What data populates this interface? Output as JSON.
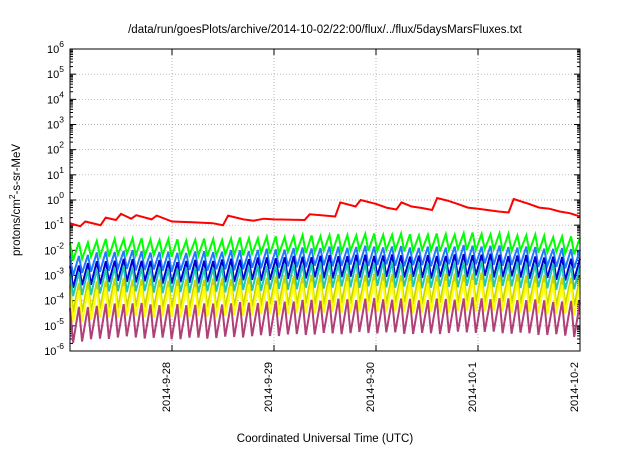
{
  "chart_data": {
    "type": "line",
    "title": "/data/run/goesPlots/archive/2014-10-02/22:00/flux/../flux/5daysMarsFluxes.txt",
    "xlabel": "Coordinated Universal Time (UTC)",
    "ylabel_parts": [
      "protons/cm",
      "2",
      "-s-sr-MeV"
    ],
    "yscale": "log",
    "ylim_exp": [
      -6,
      6
    ],
    "y_ticks": [
      {
        "base": "10",
        "exp": "6"
      },
      {
        "base": "10",
        "exp": "5"
      },
      {
        "base": "10",
        "exp": "4"
      },
      {
        "base": "10",
        "exp": "3"
      },
      {
        "base": "10",
        "exp": "2"
      },
      {
        "base": "10",
        "exp": "1"
      },
      {
        "base": "10",
        "exp": "0"
      },
      {
        "base": "10",
        "exp": "-1"
      },
      {
        "base": "10",
        "exp": "-2"
      },
      {
        "base": "10",
        "exp": "-3"
      },
      {
        "base": "10",
        "exp": "-4"
      },
      {
        "base": "10",
        "exp": "-5"
      },
      {
        "base": "10",
        "exp": "-6"
      }
    ],
    "xlim_days": [
      0,
      5
    ],
    "x_ticks": [
      {
        "label": "2014-9-28",
        "day": 1
      },
      {
        "label": "2014-9-29",
        "day": 2
      },
      {
        "label": "2014-9-30",
        "day": 3
      },
      {
        "label": "2014-10-1",
        "day": 4
      },
      {
        "label": "2014-10-2",
        "day": 5
      }
    ],
    "grid": true,
    "series": [
      {
        "color": "#ff0000",
        "points": [
          [
            0.0,
            0.12
          ],
          [
            0.1,
            0.09
          ],
          [
            0.15,
            0.14
          ],
          [
            0.3,
            0.1
          ],
          [
            0.35,
            0.2
          ],
          [
            0.45,
            0.16
          ],
          [
            0.5,
            0.28
          ],
          [
            0.6,
            0.18
          ],
          [
            0.65,
            0.25
          ],
          [
            0.8,
            0.17
          ],
          [
            0.85,
            0.24
          ],
          [
            1.0,
            0.14
          ],
          [
            1.2,
            0.13
          ],
          [
            1.4,
            0.12
          ],
          [
            1.5,
            0.1
          ],
          [
            1.55,
            0.24
          ],
          [
            1.7,
            0.17
          ],
          [
            1.8,
            0.15
          ],
          [
            1.9,
            0.18
          ],
          [
            2.0,
            0.17
          ],
          [
            2.3,
            0.16
          ],
          [
            2.35,
            0.27
          ],
          [
            2.6,
            0.22
          ],
          [
            2.65,
            0.8
          ],
          [
            2.8,
            0.55
          ],
          [
            2.85,
            1.0
          ],
          [
            3.0,
            0.7
          ],
          [
            3.1,
            0.5
          ],
          [
            3.2,
            0.42
          ],
          [
            3.25,
            0.8
          ],
          [
            3.35,
            0.55
          ],
          [
            3.45,
            0.48
          ],
          [
            3.55,
            0.4
          ],
          [
            3.6,
            1.2
          ],
          [
            3.7,
            0.95
          ],
          [
            3.8,
            0.7
          ],
          [
            3.9,
            0.5
          ],
          [
            4.0,
            0.45
          ],
          [
            4.2,
            0.35
          ],
          [
            4.3,
            0.32
          ],
          [
            4.35,
            1.1
          ],
          [
            4.5,
            0.7
          ],
          [
            4.6,
            0.5
          ],
          [
            4.7,
            0.45
          ],
          [
            4.8,
            0.35
          ],
          [
            4.9,
            0.3
          ],
          [
            5.0,
            0.22
          ]
        ]
      },
      {
        "color": "#00ff00",
        "base": [
          0.009,
          0.015,
          0.013,
          0.014,
          0.017,
          0.02,
          0.022,
          0.021,
          0.024,
          0.02,
          0.016
        ],
        "hi": 2.0,
        "lo": 0.45
      },
      {
        "color": "#1e7bff",
        "base": [
          0.0025,
          0.0045,
          0.0037,
          0.0042,
          0.005,
          0.006,
          0.0065,
          0.006,
          0.007,
          0.006,
          0.0048
        ],
        "hi": 2.2,
        "lo": 0.4
      },
      {
        "color": "#0000d0",
        "base": [
          0.0009,
          0.0017,
          0.0014,
          0.0016,
          0.002,
          0.0023,
          0.0025,
          0.0023,
          0.0027,
          0.0023,
          0.0018
        ],
        "hi": 2.6,
        "lo": 0.35
      },
      {
        "color": "#20c8b0",
        "base": [
          0.00045,
          0.0008,
          0.00068,
          0.00076,
          0.0009,
          0.0011,
          0.0012,
          0.0011,
          0.0013,
          0.0011,
          0.00085
        ],
        "hi": 2.8,
        "lo": 0.3
      },
      {
        "color": "#c8d400",
        "base": [
          0.00012,
          0.00022,
          0.00019,
          0.00021,
          0.00026,
          0.0003,
          0.00033,
          0.0003,
          0.00035,
          0.0003,
          0.00023
        ],
        "hi": 3.5,
        "lo": 0.25
      },
      {
        "color": "#ffff00",
        "base": [
          6e-05,
          0.00011,
          0.0001,
          0.00011,
          0.00013,
          0.00015,
          0.00017,
          0.00015,
          0.00018,
          0.00015,
          0.00012
        ],
        "hi": 3.5,
        "lo": 0.22
      },
      {
        "color": "#b04078",
        "base": [
          1.2e-05,
          2e-05,
          1.7e-05,
          1.9e-05,
          2.3e-05,
          2.7e-05,
          3e-05,
          2.7e-05,
          3.2e-05,
          2.7e-05,
          2.1e-05
        ],
        "hi": 4.0,
        "lo": 0.18
      }
    ],
    "sawtooth_teeth": 57
  }
}
